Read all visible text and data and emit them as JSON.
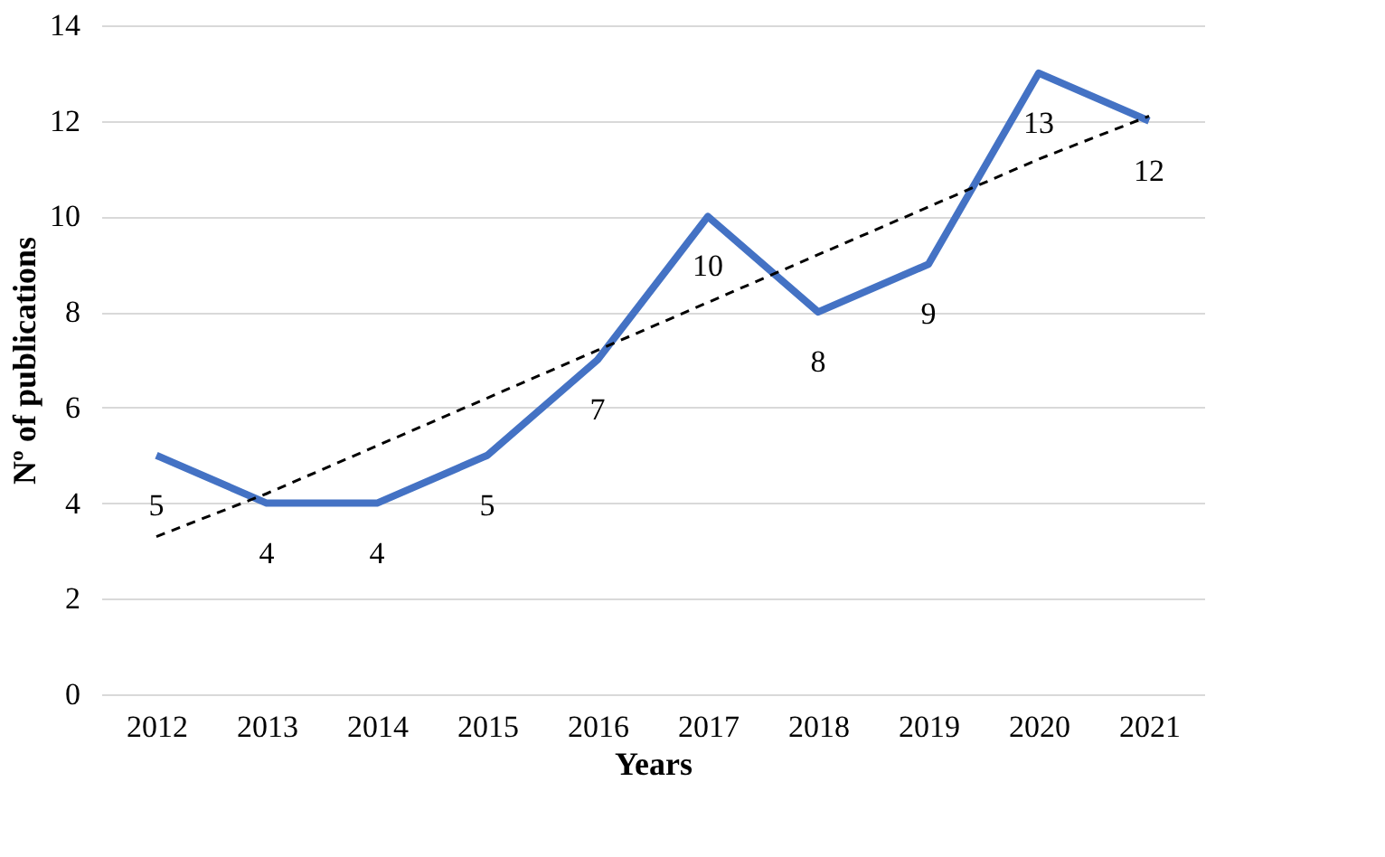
{
  "chart_data": {
    "type": "line",
    "xlabel": "Years",
    "ylabel": "Nº of publications",
    "categories": [
      "2012",
      "2013",
      "2014",
      "2015",
      "2016",
      "2017",
      "2018",
      "2019",
      "2020",
      "2021"
    ],
    "series": [
      {
        "color": "#4472c4",
        "values": [
          5,
          4,
          4,
          5,
          7,
          10,
          8,
          9,
          13,
          12
        ],
        "value_labels": [
          "5",
          "4",
          "4",
          "5",
          "7",
          "10",
          "8",
          "9",
          "13",
          "12"
        ]
      },
      {
        "type": "line",
        "color": "#000000",
        "line_style": "dashed",
        "values": [
          3.3,
          4.2,
          5.2,
          6.2,
          7.2,
          8.2,
          9.2,
          10.2,
          11.2,
          12.1
        ]
      }
    ],
    "ylim": [
      0,
      14
    ],
    "yticks": [
      0,
      2,
      4,
      6,
      8,
      10,
      12,
      14
    ],
    "grid": "y",
    "line_style": "solid"
  }
}
